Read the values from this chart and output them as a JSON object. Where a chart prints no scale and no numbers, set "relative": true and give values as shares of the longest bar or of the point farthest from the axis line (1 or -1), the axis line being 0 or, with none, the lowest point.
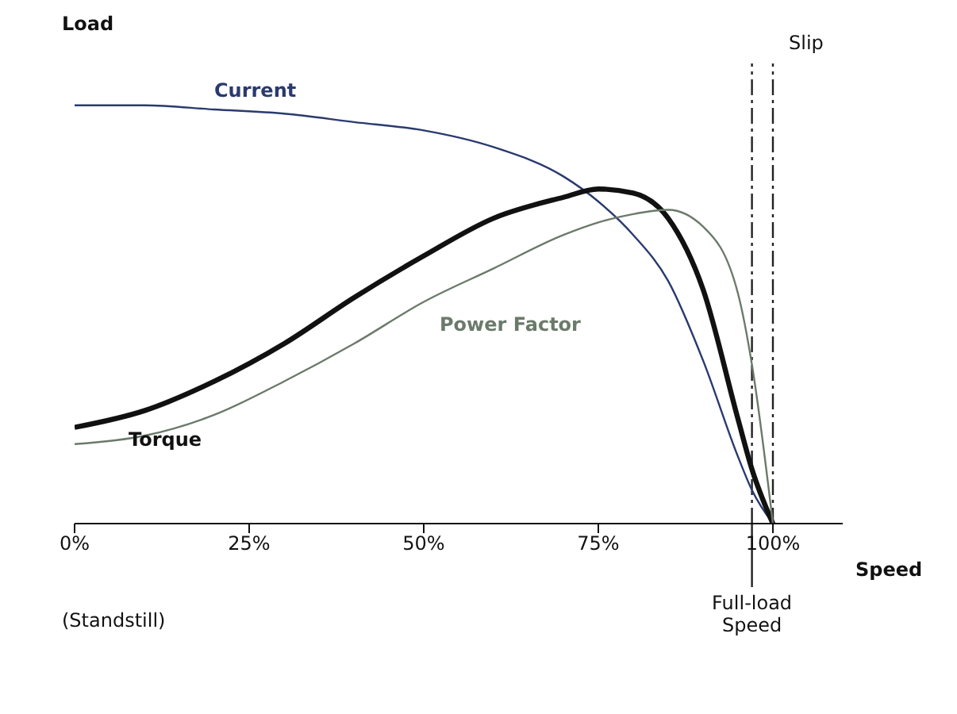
{
  "chart_data": {
    "type": "line",
    "relative": true,
    "xlabel": "Speed",
    "ylabel": "Load",
    "x": [
      0,
      10,
      20,
      30,
      40,
      50,
      60,
      70,
      75,
      80,
      85,
      90,
      95,
      97,
      100
    ],
    "xlim": [
      0,
      110
    ],
    "xticks": [
      {
        "value": 0,
        "label": "0%"
      },
      {
        "value": 25,
        "label": "25%"
      },
      {
        "value": 50,
        "label": "50%"
      },
      {
        "value": 75,
        "label": "75%"
      },
      {
        "value": 100,
        "label": "100%"
      }
    ],
    "series": [
      {
        "name": "Current",
        "color": "#2a3a6e",
        "values": [
          1,
          1,
          0.99,
          0.98,
          0.96,
          0.94,
          0.9,
          0.83,
          0.77,
          0.69,
          0.58,
          0.39,
          0.16,
          0.08,
          0
        ]
      },
      {
        "name": "Torque",
        "color": "#111111",
        "values": [
          0.23,
          0.27,
          0.34,
          0.43,
          0.54,
          0.64,
          0.73,
          0.78,
          0.8,
          0.79,
          0.73,
          0.56,
          0.25,
          0.13,
          0
        ]
      },
      {
        "name": "Power Factor",
        "color": "#6b7a6b",
        "values": [
          0.19,
          0.21,
          0.26,
          0.34,
          0.43,
          0.53,
          0.61,
          0.69,
          0.72,
          0.74,
          0.75,
          0.71,
          0.55,
          0.38,
          0
        ]
      }
    ],
    "ref_lines": [
      {
        "axis": "x",
        "value": 97,
        "label": "Full-load Speed",
        "color": "#222222",
        "line_style": "dashdot"
      },
      {
        "axis": "x",
        "value": 100,
        "label": null,
        "color": "#222222",
        "line_style": "dashdot"
      }
    ],
    "annotations": [
      "(Standstill)",
      "Slip"
    ],
    "marker": "none",
    "line_style": "solid"
  }
}
